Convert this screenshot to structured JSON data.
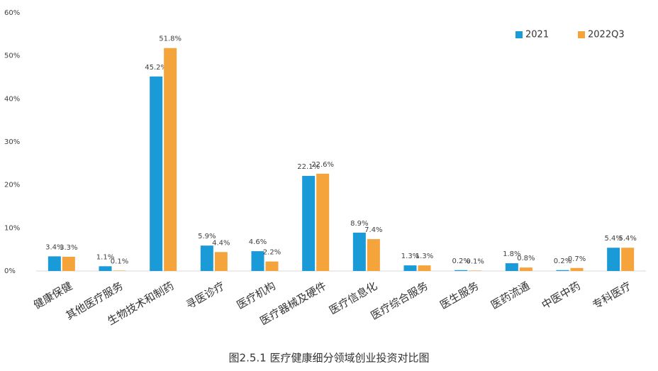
{
  "chart_data": {
    "type": "bar",
    "title": "图2.5.1    医疗健康细分领域创业投资对比图",
    "categories": [
      "健康保健",
      "其他医疗服务",
      "生物技术和制药",
      "寻医诊疗",
      "医疗机构",
      "医疗器械及硬件",
      "医疗信息化",
      "医疗综合服务",
      "医生服务",
      "医药流通",
      "中医中药",
      "专科医疗"
    ],
    "series": [
      {
        "name": "2021",
        "color": "#1a9ad6",
        "values": [
          3.4,
          1.1,
          45.2,
          5.9,
          4.6,
          22.1,
          8.9,
          1.3,
          0.2,
          1.8,
          0.2,
          5.4
        ],
        "value_labels": [
          "3.4%",
          "1.1%",
          "45.2%",
          "5.9%",
          "4.6%",
          "22.1%",
          "8.9%",
          "1.3%",
          "0.2%",
          "1.8%",
          "0.2%",
          "5.4%"
        ]
      },
      {
        "name": "2022Q3",
        "color": "#f5a33b",
        "values": [
          3.3,
          0.1,
          51.8,
          4.4,
          2.2,
          22.6,
          7.4,
          1.3,
          0.1,
          0.8,
          0.7,
          5.4
        ],
        "value_labels": [
          "3.3%",
          "0.1%",
          "51.8%",
          "4.4%",
          "2.2%",
          "22.6%",
          "7.4%",
          "1.3%",
          "0.1%",
          "0.8%",
          "0.7%",
          "5.4%"
        ]
      }
    ],
    "ylim": [
      0,
      60
    ],
    "yticks": [
      {
        "value": 0,
        "label": "0%"
      },
      {
        "value": 10,
        "label": "10%"
      },
      {
        "value": 20,
        "label": "20%"
      },
      {
        "value": 30,
        "label": "30%"
      },
      {
        "value": 40,
        "label": "40%"
      },
      {
        "value": 50,
        "label": "50%"
      },
      {
        "value": 60,
        "label": "60%"
      }
    ],
    "grid": false,
    "legend": "top-right"
  }
}
